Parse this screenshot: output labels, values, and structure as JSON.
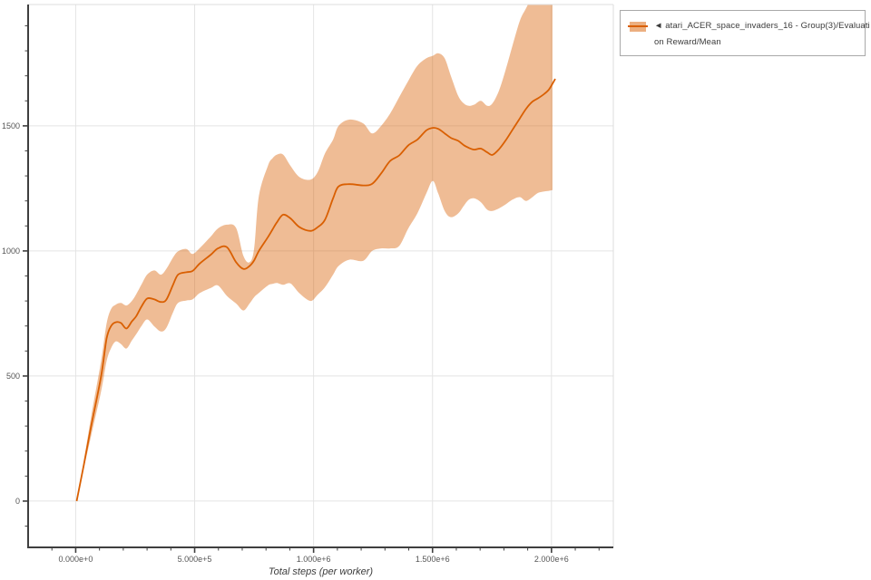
{
  "legend": {
    "series_label": "◄ atari_ACER_space_invaders_16 - Group(3)/Evaluation Reward/Mean",
    "line1": "◄ atari_ACER_space_invaders_16 - Group(3)/Evaluati",
    "line2": "on Reward/Mean"
  },
  "chart_data": {
    "type": "line",
    "title": "",
    "xlabel": "Total steps (per worker)",
    "ylabel": "",
    "xlim": [
      -200000,
      2260000
    ],
    "ylim": [
      -185,
      1985
    ],
    "grid": true,
    "legend_position": "top-right-outside",
    "x_ticks": [
      {
        "value": 0,
        "label": "0.000e+0"
      },
      {
        "value": 500000,
        "label": "5.000e+5"
      },
      {
        "value": 1000000,
        "label": "1.000e+6"
      },
      {
        "value": 1500000,
        "label": "1.500e+6"
      },
      {
        "value": 2000000,
        "label": "2.000e+6"
      }
    ],
    "y_ticks": [
      {
        "value": 0,
        "label": "0"
      },
      {
        "value": 500,
        "label": "500"
      },
      {
        "value": 1000,
        "label": "1000"
      },
      {
        "value": 1500,
        "label": "1500"
      }
    ],
    "x_minor_step": 100000,
    "y_minor_step": 100,
    "colors": {
      "line": "#d95f02",
      "band": "rgba(217,95,2,0.42)",
      "legend_band": "rgba(217,95,2,0.5)",
      "grid": "#e4e4e4",
      "spine": "#3f3f3f",
      "outer_border": "#dcdcdc",
      "tick_label": "#555555",
      "axis_title": "#3c3c3c"
    },
    "series": [
      {
        "name": "atari_ACER_space_invaders_16 - Group(3)/Evaluation Reward/Mean",
        "x": [
          4000,
          34000,
          65000,
          107000,
          130000,
          149000,
          168000,
          190000,
          213000,
          236000,
          255000,
          278000,
          301000,
          331000,
          358000,
          381000,
          408000,
          430000,
          465000,
          491000,
          522000,
          568000,
          598000,
          636000,
          674000,
          705000,
          731000,
          750000,
          770000,
          808000,
          827000,
          846000,
          872000,
          903000,
          941000,
          987000,
          1017000,
          1048000,
          1082000,
          1105000,
          1150000,
          1208000,
          1246000,
          1284000,
          1322000,
          1360000,
          1398000,
          1436000,
          1474000,
          1501000,
          1524000,
          1551000,
          1577000,
          1608000,
          1631000,
          1653000,
          1676000,
          1703000,
          1730000,
          1752000,
          1779000,
          1806000,
          1836000,
          1867000,
          1893000,
          1920000,
          1943000,
          1970000,
          1989000,
          2004000,
          2016000
        ],
        "mean": [
          0,
          145,
          300,
          500,
          650,
          700,
          715,
          712,
          690,
          718,
          740,
          780,
          810,
          806,
          796,
          805,
          862,
          905,
          915,
          920,
          950,
          985,
          1010,
          1015,
          955,
          928,
          940,
          962,
          1000,
          1055,
          1085,
          1115,
          1145,
          1130,
          1095,
          1080,
          1095,
          1125,
          1210,
          1258,
          1267,
          1262,
          1268,
          1310,
          1360,
          1382,
          1422,
          1445,
          1482,
          1492,
          1488,
          1470,
          1452,
          1440,
          1423,
          1412,
          1405,
          1409,
          1394,
          1384,
          1406,
          1440,
          1484,
          1530,
          1568,
          1597,
          1610,
          1628,
          1645,
          1668,
          1688
        ],
        "band_last_index": 69,
        "lo": [
          0,
          130,
          262,
          440,
          560,
          612,
          638,
          628,
          610,
          642,
          668,
          702,
          726,
          698,
          678,
          692,
          752,
          792,
          802,
          806,
          832,
          852,
          862,
          820,
          790,
          762,
          790,
          815,
          832,
          862,
          868,
          872,
          865,
          870,
          830,
          800,
          825,
          855,
          905,
          940,
          965,
          960,
          1000,
          1010,
          1010,
          1020,
          1090,
          1150,
          1230,
          1280,
          1230,
          1160,
          1135,
          1150,
          1180,
          1205,
          1210,
          1195,
          1165,
          1160,
          1170,
          1185,
          1205,
          1215,
          1200,
          1215,
          1232,
          1238,
          1240,
          1243
        ],
        "hi": [
          0,
          160,
          338,
          562,
          710,
          768,
          785,
          792,
          782,
          800,
          828,
          868,
          906,
          922,
          905,
          928,
          972,
          998,
          1008,
          988,
          1012,
          1058,
          1090,
          1105,
          1092,
          980,
          955,
          1010,
          1220,
          1340,
          1370,
          1385,
          1385,
          1340,
          1295,
          1285,
          1315,
          1390,
          1445,
          1500,
          1525,
          1510,
          1470,
          1500,
          1550,
          1615,
          1680,
          1740,
          1770,
          1780,
          1790,
          1770,
          1700,
          1620,
          1590,
          1580,
          1585,
          1600,
          1580,
          1590,
          1640,
          1720,
          1820,
          1920,
          1970,
          2020,
          2060,
          2070,
          2060,
          2040
        ]
      }
    ]
  }
}
